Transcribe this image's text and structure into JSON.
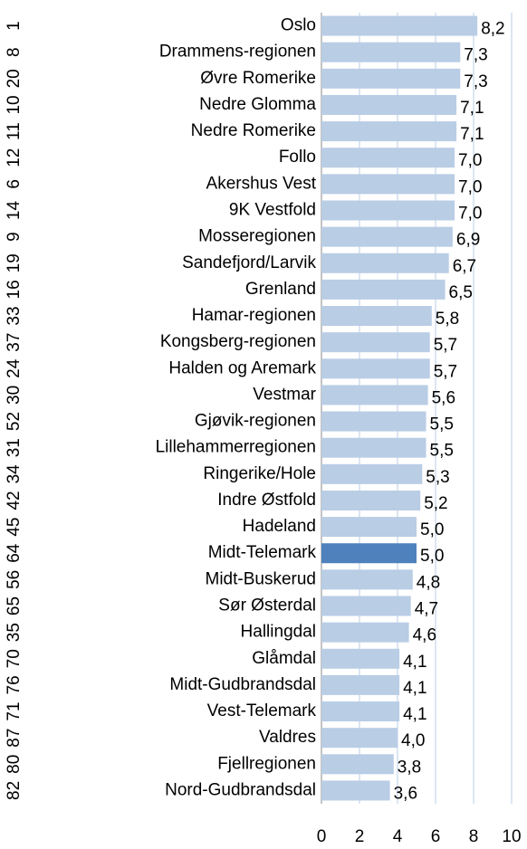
{
  "chart_data": {
    "type": "bar",
    "orientation": "horizontal",
    "categories": [
      "Oslo",
      "Drammens-regionen",
      "Øvre Romerike",
      "Nedre Glomma",
      "Nedre Romerike",
      "Follo",
      "Akershus Vest",
      "9K Vestfold",
      "Mosseregionen",
      "Sandefjord/Larvik",
      "Grenland",
      "Hamar-regionen",
      "Kongsberg-regionen",
      "Halden og Aremark",
      "Vestmar",
      "Gjøvik-regionen",
      "Lillehammerregionen",
      "Ringerike/Hole",
      "Indre Østfold",
      "Hadeland",
      "Midt-Telemark",
      "Midt-Buskerud",
      "Sør Østerdal",
      "Hallingdal",
      "Glåmdal",
      "Midt-Gudbrandsdal",
      "Vest-Telemark",
      "Valdres",
      "Fjellregionen",
      "Nord-Gudbrandsdal"
    ],
    "groups": [
      "1",
      "8",
      "20",
      "10",
      "11",
      "12",
      "6",
      "14",
      "9",
      "19",
      "16",
      "33",
      "37",
      "24",
      "30",
      "52",
      "31",
      "34",
      "42",
      "45",
      "64",
      "56",
      "65",
      "35",
      "70",
      "76",
      "71",
      "87",
      "80",
      "82"
    ],
    "values": [
      8.2,
      7.3,
      7.3,
      7.1,
      7.1,
      7.0,
      7.0,
      7.0,
      6.9,
      6.7,
      6.5,
      5.8,
      5.7,
      5.7,
      5.6,
      5.5,
      5.5,
      5.3,
      5.2,
      5.0,
      5.0,
      4.8,
      4.7,
      4.6,
      4.1,
      4.1,
      4.1,
      4.0,
      3.8,
      3.6
    ],
    "value_labels": [
      "8,2",
      "7,3",
      "7,3",
      "7,1",
      "7,1",
      "7,0",
      "7,0",
      "7,0",
      "6,9",
      "6,7",
      "6,5",
      "5,8",
      "5,7",
      "5,7",
      "5,6",
      "5,5",
      "5,5",
      "5,3",
      "5,2",
      "5,0",
      "5,0",
      "4,8",
      "4,7",
      "4,6",
      "4,1",
      "4,1",
      "4,1",
      "4,0",
      "3,8",
      "3,6"
    ],
    "colors": [
      "#b9cde5",
      "#b9cde5",
      "#b9cde5",
      "#b9cde5",
      "#b9cde5",
      "#b9cde5",
      "#b9cde5",
      "#b9cde5",
      "#b9cde5",
      "#b9cde5",
      "#b9cde5",
      "#b9cde5",
      "#b9cde5",
      "#b9cde5",
      "#b9cde5",
      "#b9cde5",
      "#b9cde5",
      "#b9cde5",
      "#b9cde5",
      "#b9cde5",
      "#4f81bd",
      "#b9cde5",
      "#b9cde5",
      "#b9cde5",
      "#b9cde5",
      "#b9cde5",
      "#b9cde5",
      "#b9cde5",
      "#b9cde5",
      "#b9cde5"
    ],
    "xlim": [
      0,
      10
    ],
    "xticks": [
      0,
      2,
      4,
      6,
      8,
      10
    ],
    "grid": true
  }
}
